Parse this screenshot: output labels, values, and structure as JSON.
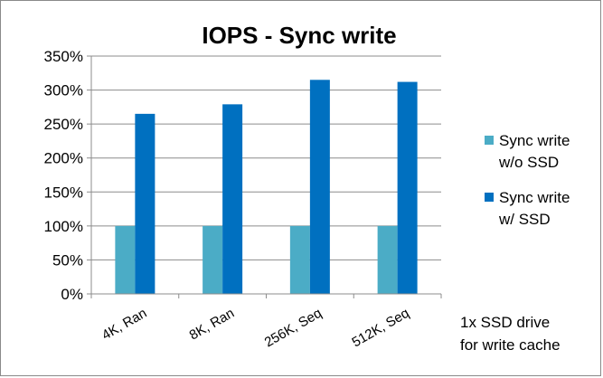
{
  "chart_data": {
    "type": "bar",
    "title": "IOPS - Sync write",
    "categories": [
      "4K, Ran",
      "8K, Ran",
      "256K, Seq",
      "512K, Seq"
    ],
    "series": [
      {
        "name": "Sync write w/o SSD",
        "name_lines": [
          "Sync write",
          "w/o SSD"
        ],
        "values": [
          100,
          100,
          100,
          100
        ],
        "color": "#4bacc6"
      },
      {
        "name": "Sync write w/ SSD",
        "name_lines": [
          "Sync write",
          "w/ SSD"
        ],
        "values": [
          265,
          279,
          315,
          312
        ],
        "color": "#0070c0"
      }
    ],
    "ylim": [
      0,
      350
    ],
    "yticks": [
      0,
      50,
      100,
      150,
      200,
      250,
      300,
      350
    ],
    "ytick_labels": [
      "0%",
      "50%",
      "100%",
      "150%",
      "200%",
      "250%",
      "300%",
      "350%"
    ],
    "grid": true,
    "legend_position": "right",
    "xlabel": "",
    "ylabel": "",
    "annotation_lines": [
      "1x SSD drive",
      "for write cache"
    ]
  }
}
